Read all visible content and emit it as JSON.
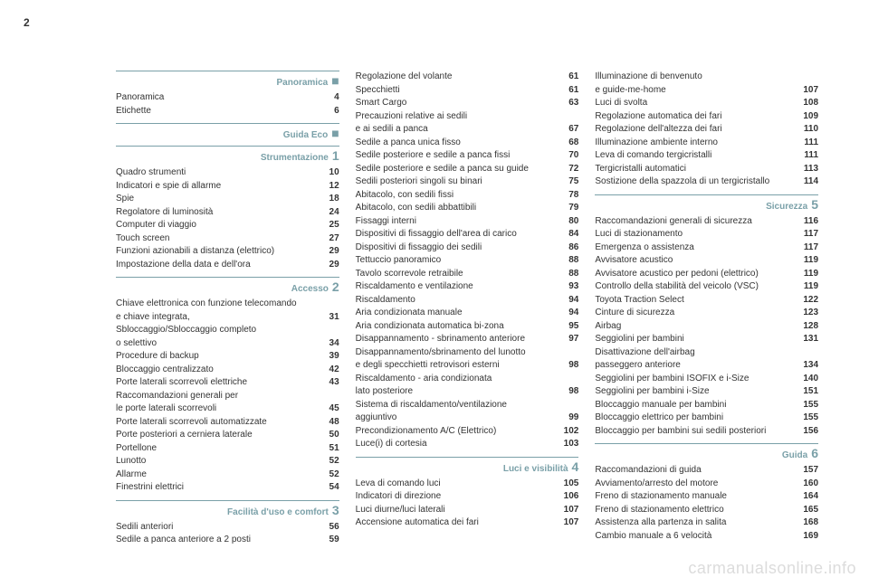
{
  "page_number": "2",
  "watermark": "carmanualsonline.info",
  "columns": [
    {
      "sections": [
        {
          "title": "Panoramica",
          "marker": "■",
          "entries": [
            {
              "label": "Panoramica",
              "page": "4"
            },
            {
              "label": "Etichette",
              "page": "6"
            }
          ]
        },
        {
          "title": "Guida Eco",
          "marker": "■",
          "entries": []
        },
        {
          "title": "Strumentazione",
          "marker": "1",
          "entries": [
            {
              "label": "Quadro strumenti",
              "page": "10"
            },
            {
              "label": "Indicatori e spie di allarme",
              "page": "12"
            },
            {
              "label": "Spie",
              "page": "18"
            },
            {
              "label": "Regolatore di luminosità",
              "page": "24"
            },
            {
              "label": "Computer di viaggio",
              "page": "25"
            },
            {
              "label": "Touch screen",
              "page": "27"
            },
            {
              "label": "Funzioni azionabili a distanza (elettrico)",
              "page": "29"
            },
            {
              "label": "Impostazione della data e dell'ora",
              "page": "29"
            }
          ]
        },
        {
          "title": "Accesso",
          "marker": "2",
          "entries": [
            {
              "label_lines": [
                "Chiave elettronica con funzione telecomando",
                "e chiave integrata,"
              ],
              "page": "31"
            },
            {
              "label_lines": [
                "Sbloccaggio/Sbloccaggio completo",
                "o selettivo"
              ],
              "page": "34"
            },
            {
              "label": "Procedure di backup",
              "page": "39"
            },
            {
              "label": "Bloccaggio centralizzato",
              "page": "42"
            },
            {
              "label": "Porte laterali scorrevoli elettriche",
              "page": "43"
            },
            {
              "label_lines": [
                "Raccomandazioni generali per",
                "le porte laterali scorrevoli"
              ],
              "page": "45"
            },
            {
              "label": "Porte laterali scorrevoli automatizzate",
              "page": "48"
            },
            {
              "label": "Porte posteriori a cerniera laterale",
              "page": "50"
            },
            {
              "label": "Portellone",
              "page": "51"
            },
            {
              "label": "Lunotto",
              "page": "52"
            },
            {
              "label": "Allarme",
              "page": "52"
            },
            {
              "label": "Finestrini elettrici",
              "page": "54"
            }
          ]
        },
        {
          "title": "Facilità d'uso e comfort",
          "marker": "3",
          "entries": [
            {
              "label": "Sedili anteriori",
              "page": "56"
            },
            {
              "label": "Sedile a panca anteriore a 2 posti",
              "page": "59"
            }
          ]
        }
      ]
    },
    {
      "sections": [
        {
          "no_head": true,
          "entries": [
            {
              "label": "Regolazione del volante",
              "page": "61"
            },
            {
              "label": "Specchietti",
              "page": "61"
            },
            {
              "label": "Smart Cargo",
              "page": "63"
            },
            {
              "label_lines": [
                "Precauzioni relative ai sedili",
                "e ai sedili a panca"
              ],
              "page": "67"
            },
            {
              "label": "Sedile a panca unica fisso",
              "page": "68"
            },
            {
              "label": "Sedile posteriore e sedile a panca fissi",
              "page": "70"
            },
            {
              "label": "Sedile posteriore e sedile a panca su guide",
              "page": "72"
            },
            {
              "label": "Sedili posteriori singoli su binari",
              "page": "75"
            },
            {
              "label": "Abitacolo, con sedili fissi",
              "page": "78"
            },
            {
              "label": "Abitacolo, con sedili abbattibili",
              "page": "79"
            },
            {
              "label": "Fissaggi interni",
              "page": "80"
            },
            {
              "label": "Dispositivi di fissaggio dell'area di carico",
              "page": "84"
            },
            {
              "label": "Dispositivi di fissaggio dei sedili",
              "page": "86"
            },
            {
              "label": "Tettuccio panoramico",
              "page": "88"
            },
            {
              "label": "Tavolo scorrevole retraibile",
              "page": "88"
            },
            {
              "label": "Riscaldamento e ventilazione",
              "page": "93"
            },
            {
              "label": "Riscaldamento",
              "page": "94"
            },
            {
              "label": "Aria condizionata manuale",
              "page": "94"
            },
            {
              "label": "Aria condizionata automatica bi-zona",
              "page": "95"
            },
            {
              "label": "Disappannamento - sbrinamento anteriore",
              "page": "97"
            },
            {
              "label_lines": [
                "Disappannamento/sbrinamento del lunotto",
                "e degli specchietti retrovisori esterni"
              ],
              "page": "98"
            },
            {
              "label_lines": [
                "Riscaldamento - aria condizionata",
                "lato posteriore"
              ],
              "page": "98"
            },
            {
              "label_lines": [
                "Sistema di riscaldamento/ventilazione",
                "aggiuntivo"
              ],
              "page": "99"
            },
            {
              "label": "Precondizionamento A/C (Elettrico)",
              "page": "102"
            },
            {
              "label": "Luce(i) di cortesia",
              "page": "103"
            }
          ]
        },
        {
          "title": "Luci e visibilità",
          "marker": "4",
          "entries": [
            {
              "label": "Leva di comando luci",
              "page": "105"
            },
            {
              "label": "Indicatori di direzione",
              "page": "106"
            },
            {
              "label": "Luci diurne/luci laterali",
              "page": "107"
            },
            {
              "label": "Accensione automatica dei fari",
              "page": "107"
            }
          ]
        }
      ]
    },
    {
      "sections": [
        {
          "no_head": true,
          "entries": [
            {
              "label_lines": [
                "Illuminazione di benvenuto",
                "e guide-me-home"
              ],
              "page": "107"
            },
            {
              "label": "Luci di svolta",
              "page": "108"
            },
            {
              "label": "Regolazione automatica dei fari",
              "page": "109"
            },
            {
              "label": "Regolazione dell'altezza dei fari",
              "page": "110"
            },
            {
              "label": "Illuminazione ambiente interno",
              "page": "111"
            },
            {
              "label": "Leva di comando tergicristalli",
              "page": "111"
            },
            {
              "label": "Tergicristalli automatici",
              "page": "113"
            },
            {
              "label": "Sostizione della spazzola di un tergicristallo",
              "page": "114"
            }
          ]
        },
        {
          "title": "Sicurezza",
          "marker": "5",
          "entries": [
            {
              "label": "Raccomandazioni generali di sicurezza",
              "page": "116"
            },
            {
              "label": "Luci di stazionamento",
              "page": "117"
            },
            {
              "label": "Emergenza o assistenza",
              "page": "117"
            },
            {
              "label": "Avvisatore acustico",
              "page": "119"
            },
            {
              "label": "Avvisatore acustico per pedoni (elettrico)",
              "page": "119"
            },
            {
              "label": "Controllo della stabilità del veicolo (VSC)",
              "page": "119"
            },
            {
              "label": "Toyota Traction Select",
              "page": "122"
            },
            {
              "label": "Cinture di sicurezza",
              "page": "123"
            },
            {
              "label": "Airbag",
              "page": "128"
            },
            {
              "label": "Seggiolini per bambini",
              "page": "131"
            },
            {
              "label_lines": [
                "Disattivazione dell'airbag",
                "passeggero anteriore"
              ],
              "page": "134"
            },
            {
              "label": "Seggiolini per bambini ISOFIX e i-Size",
              "page": "140"
            },
            {
              "label": "Seggiolini per bambini i-Size",
              "page": "151"
            },
            {
              "label": "Bloccaggio manuale per bambini",
              "page": "155"
            },
            {
              "label": "Bloccaggio elettrico per bambini",
              "page": "155"
            },
            {
              "label": "Bloccaggio per bambini sui sedili posteriori",
              "page": "156"
            }
          ]
        },
        {
          "title": "Guida",
          "marker": "6",
          "entries": [
            {
              "label": "Raccomandazioni di guida",
              "page": "157"
            },
            {
              "label": "Avviamento/arresto del motore",
              "page": "160"
            },
            {
              "label": "Freno di stazionamento manuale",
              "page": "164"
            },
            {
              "label": "Freno di stazionamento elettrico",
              "page": "165"
            },
            {
              "label": "Assistenza alla partenza in salita",
              "page": "168"
            },
            {
              "label": "Cambio manuale a 6 velocità",
              "page": "169"
            }
          ]
        }
      ]
    }
  ]
}
